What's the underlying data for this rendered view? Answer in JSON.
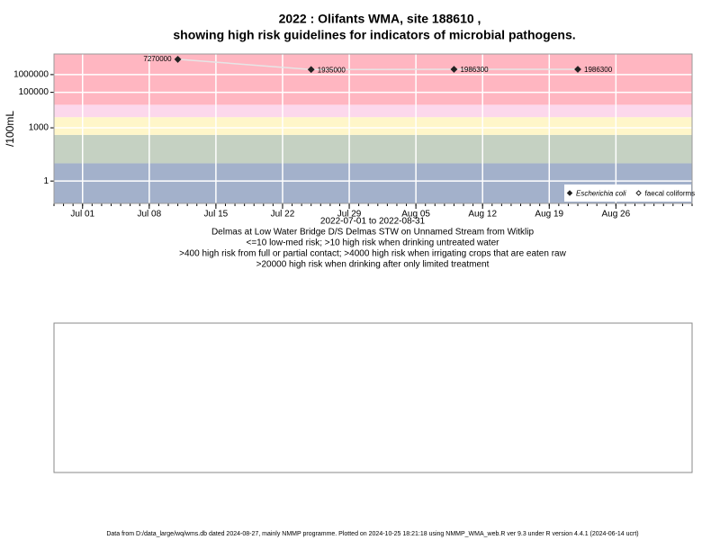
{
  "chart_data": {
    "type": "line",
    "title": "2022 : Olifants WMA, site 188610 ,",
    "subtitle": "showing high risk guidelines for indicators of microbial pathogens.",
    "ylabel": "/100mL",
    "xlabel": "2022-07-01 to 2022-08-31",
    "notes": [
      "Delmas at Low Water Bridge D/S Delmas STW on Unnamed Stream from Witklip",
      "<=10 low-med risk; >10 high risk when drinking untreated water",
      ">400 high risk from full or partial contact; >4000 high risk when irrigating crops that are eaten raw",
      ">20000 high risk when drinking after only limited treatment"
    ],
    "x": [
      "2022-07-11",
      "2022-07-25",
      "2022-08-09",
      "2022-08-22"
    ],
    "series": [
      {
        "name": "Escherichia coli",
        "color": "#222222",
        "marker": "filled",
        "values": [
          7270000,
          1935000,
          1986300,
          1986300
        ]
      },
      {
        "name": "faecal coliforms",
        "color": "#222222",
        "marker": "open",
        "values": [
          null,
          null,
          null,
          null
        ]
      }
    ],
    "line_color": "#e6e6e6",
    "xlim": [
      "2022-06-28",
      "2022-09-03"
    ],
    "xticks": [
      {
        "value": "2022-07-01",
        "label": "Jul 01"
      },
      {
        "value": "2022-07-08",
        "label": "Jul 08"
      },
      {
        "value": "2022-07-15",
        "label": "Jul 15"
      },
      {
        "value": "2022-07-22",
        "label": "Jul 22"
      },
      {
        "value": "2022-07-29",
        "label": "Jul 29"
      },
      {
        "value": "2022-08-05",
        "label": "Aug 05"
      },
      {
        "value": "2022-08-12",
        "label": "Aug 12"
      },
      {
        "value": "2022-08-19",
        "label": "Aug 19"
      },
      {
        "value": "2022-08-26",
        "label": "Aug 26"
      }
    ],
    "ylim": [
      0.055,
      14500000
    ],
    "yticks": [
      1,
      1000,
      100000,
      1000000
    ],
    "log_y": true,
    "grid": true,
    "legend": "bottom-right",
    "bands": [
      {
        "upper": 10,
        "color": "#a3b1cb"
      },
      {
        "upper": 400,
        "color": "#c5d1c2"
      },
      {
        "upper": 4000,
        "color": "#fff6c9"
      },
      {
        "upper": 20000,
        "color": "#fcd8ec"
      },
      {
        "upper": null,
        "color": "#ffb6c1"
      }
    ]
  },
  "footer": "Data from D:/data_large/wq/wms.db dated 2024-08-27, mainly NMMP programme. Plotted on 2024-10-25 18:21:18 using NMMP_WMA_web.R ver 9.3 under R version 4.4.1 (2024-06-14 ucrt)"
}
